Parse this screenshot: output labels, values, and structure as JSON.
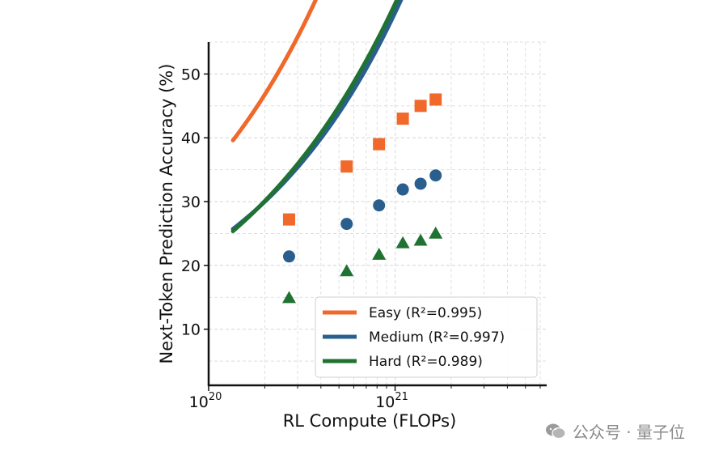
{
  "chart_data": {
    "type": "line",
    "xlabel": "RL Compute (FLOPs)",
    "ylabel": "Next-Token Prediction Accuracy (%)",
    "x_scale": "log",
    "xlim": [
      1e+20,
      6.5e+21
    ],
    "ylim": [
      1.2,
      55
    ],
    "x_major_ticks": [
      {
        "value": 1e+20,
        "base": "10",
        "exp": "20"
      },
      {
        "value": 1e+21,
        "base": "10",
        "exp": "21"
      }
    ],
    "y_ticks": [
      10,
      20,
      30,
      40,
      50
    ],
    "grid": true,
    "legend_position": "lower-right",
    "series": [
      {
        "name": "Easy (R²=0.995)",
        "color": "#f0682a",
        "marker": "square",
        "points": [
          {
            "x": 2.7e+20,
            "y": 27.2
          },
          {
            "x": 5.5e+20,
            "y": 35.5
          },
          {
            "x": 8.2e+20,
            "y": 39.0
          },
          {
            "x": 1.1e+21,
            "y": 43.0
          },
          {
            "x": 1.37e+21,
            "y": 45.0
          },
          {
            "x": 1.65e+21,
            "y": 46.0
          }
        ],
        "fit": {
          "a": 6.6,
          "b": 89.83,
          "p": 0.5,
          "x_start": 1.35e+20,
          "x_end": 6e+21
        }
      },
      {
        "name": "Medium (R²=0.997)",
        "color": "#2a5f8d",
        "marker": "circle",
        "points": [
          {
            "x": 2.7e+20,
            "y": 21.4
          },
          {
            "x": 5.5e+20,
            "y": 26.5
          },
          {
            "x": 8.2e+20,
            "y": 29.4
          },
          {
            "x": 1.1e+21,
            "y": 31.9
          },
          {
            "x": 1.37e+21,
            "y": 32.8
          },
          {
            "x": 1.65e+21,
            "y": 34.1
          }
        ],
        "fit": {
          "a": 6.0,
          "b": 53.62,
          "p": 0.5,
          "x_start": 1.35e+20,
          "x_end": 6e+21
        }
      },
      {
        "name": "Hard (R²=0.989)",
        "color": "#1f7232",
        "marker": "triangle",
        "points": [
          {
            "x": 2.7e+20,
            "y": 14.9
          },
          {
            "x": 5.5e+20,
            "y": 19.1
          },
          {
            "x": 8.2e+20,
            "y": 21.7
          },
          {
            "x": 1.1e+21,
            "y": 23.5
          },
          {
            "x": 1.37e+21,
            "y": 23.9
          },
          {
            "x": 1.65e+21,
            "y": 25.0
          }
        ],
        "fit": {
          "a": 1.0,
          "b": 60.0,
          "p": 0.45,
          "x_start": 1.35e+20,
          "x_end": 6e+21
        }
      }
    ]
  },
  "watermark": {
    "text": "公众号 · 量子位"
  }
}
